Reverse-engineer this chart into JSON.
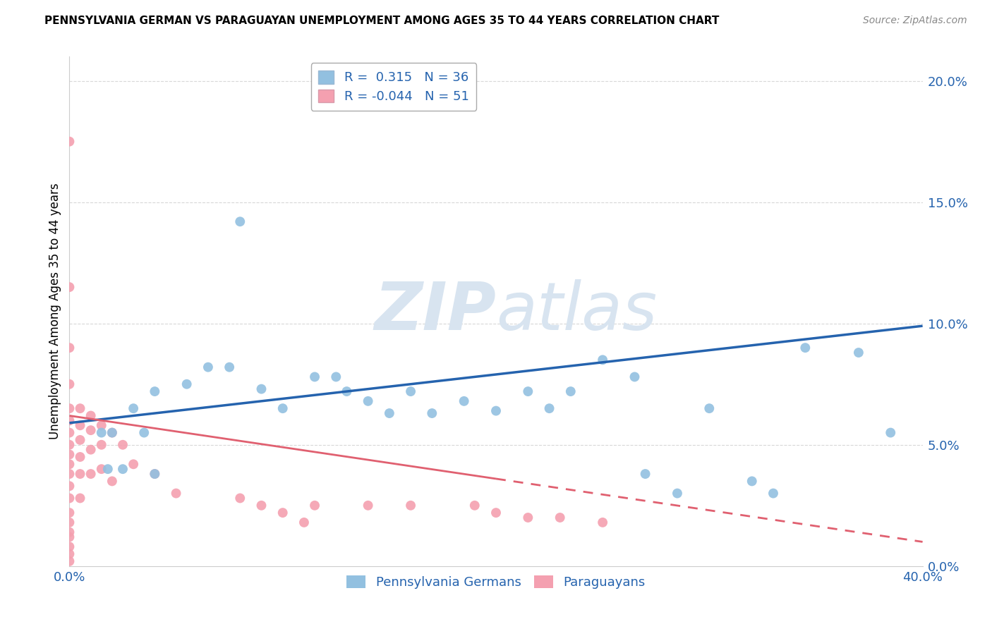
{
  "title": "PENNSYLVANIA GERMAN VS PARAGUAYAN UNEMPLOYMENT AMONG AGES 35 TO 44 YEARS CORRELATION CHART",
  "source": "Source: ZipAtlas.com",
  "ylabel": "Unemployment Among Ages 35 to 44 years",
  "xlim": [
    0.0,
    0.4
  ],
  "ylim": [
    0.0,
    0.21
  ],
  "yticks": [
    0.0,
    0.05,
    0.1,
    0.15,
    0.2
  ],
  "xticks": [
    0.0,
    0.05,
    0.1,
    0.15,
    0.2,
    0.25,
    0.3,
    0.35,
    0.4
  ],
  "blue_color": "#92C0E0",
  "pink_color": "#F4A0B0",
  "blue_line_color": "#2563AE",
  "pink_line_color": "#E06070",
  "text_color": "#2563AE",
  "R_blue": 0.315,
  "N_blue": 36,
  "R_pink": -0.044,
  "N_pink": 51,
  "legend_label_blue": "Pennsylvania Germans",
  "legend_label_pink": "Paraguayans",
  "watermark_zip": "ZIP",
  "watermark_atlas": "atlas",
  "blue_line_x0": 0.0,
  "blue_line_y0": 0.059,
  "blue_line_x1": 0.4,
  "blue_line_y1": 0.099,
  "pink_line_x0": 0.0,
  "pink_line_y0": 0.062,
  "pink_line_x1": 0.4,
  "pink_line_y1": 0.01,
  "blue_x": [
    0.015,
    0.018,
    0.02,
    0.025,
    0.03,
    0.035,
    0.04,
    0.04,
    0.055,
    0.065,
    0.075,
    0.08,
    0.09,
    0.1,
    0.115,
    0.125,
    0.13,
    0.14,
    0.15,
    0.16,
    0.17,
    0.185,
    0.2,
    0.215,
    0.225,
    0.235,
    0.25,
    0.265,
    0.27,
    0.285,
    0.3,
    0.32,
    0.33,
    0.345,
    0.37,
    0.385
  ],
  "blue_y": [
    0.055,
    0.04,
    0.055,
    0.04,
    0.065,
    0.055,
    0.038,
    0.072,
    0.075,
    0.082,
    0.082,
    0.142,
    0.073,
    0.065,
    0.078,
    0.078,
    0.072,
    0.068,
    0.063,
    0.072,
    0.063,
    0.068,
    0.064,
    0.072,
    0.065,
    0.072,
    0.085,
    0.078,
    0.038,
    0.03,
    0.065,
    0.035,
    0.03,
    0.09,
    0.088,
    0.055
  ],
  "pink_x": [
    0.0,
    0.0,
    0.0,
    0.0,
    0.0,
    0.0,
    0.0,
    0.0,
    0.0,
    0.0,
    0.0,
    0.0,
    0.0,
    0.0,
    0.0,
    0.0,
    0.0,
    0.0,
    0.0,
    0.0,
    0.005,
    0.005,
    0.005,
    0.005,
    0.005,
    0.005,
    0.01,
    0.01,
    0.01,
    0.01,
    0.015,
    0.015,
    0.015,
    0.02,
    0.02,
    0.025,
    0.03,
    0.04,
    0.05,
    0.08,
    0.09,
    0.1,
    0.11,
    0.115,
    0.14,
    0.16,
    0.19,
    0.2,
    0.215,
    0.23,
    0.25
  ],
  "pink_y": [
    0.175,
    0.115,
    0.09,
    0.075,
    0.065,
    0.06,
    0.055,
    0.05,
    0.046,
    0.042,
    0.038,
    0.033,
    0.028,
    0.022,
    0.018,
    0.014,
    0.012,
    0.008,
    0.005,
    0.002,
    0.065,
    0.058,
    0.052,
    0.045,
    0.038,
    0.028,
    0.062,
    0.056,
    0.048,
    0.038,
    0.058,
    0.05,
    0.04,
    0.055,
    0.035,
    0.05,
    0.042,
    0.038,
    0.03,
    0.028,
    0.025,
    0.022,
    0.018,
    0.025,
    0.025,
    0.025,
    0.025,
    0.022,
    0.02,
    0.02,
    0.018
  ]
}
